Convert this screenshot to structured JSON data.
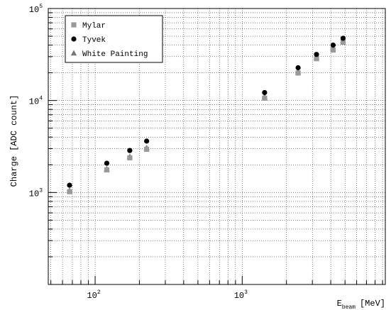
{
  "chart_data": {
    "type": "scatter",
    "xlabel": "E",
    "xlabel_sub": "beam",
    "xlabel_unit": "[MeV]",
    "ylabel": "Charge [ADC count]",
    "xscale": "log",
    "yscale": "log",
    "xlim": [
      48,
      9400
    ],
    "ylim": [
      100,
      100000
    ],
    "grid": true,
    "legend_position": "top-left",
    "x_ticks": [
      {
        "base": "10",
        "exp": "2",
        "value": 100
      },
      {
        "base": "10",
        "exp": "3",
        "value": 1000
      }
    ],
    "y_ticks": [
      {
        "base": "10",
        "exp": "3",
        "value": 1000
      },
      {
        "base": "10",
        "exp": "4",
        "value": 10000
      },
      {
        "base": "10",
        "exp": "5",
        "value": 100000
      }
    ],
    "series": [
      {
        "name": "Mylar",
        "marker": "square",
        "color": "#999999",
        "x": [
          67,
          120,
          172,
          224,
          1420,
          2400,
          3200,
          4150,
          4850
        ],
        "y": [
          1020,
          1760,
          2380,
          2950,
          10600,
          19900,
          28500,
          35300,
          43000
        ]
      },
      {
        "name": "Tyvek",
        "marker": "circle",
        "color": "#000000",
        "x": [
          67,
          120,
          172,
          224,
          1420,
          2400,
          3200,
          4150,
          4850
        ],
        "y": [
          1200,
          2080,
          2860,
          3620,
          12200,
          22700,
          31700,
          40000,
          47500
        ]
      },
      {
        "name": "White Painting",
        "marker": "triangle",
        "color": "#777777",
        "x": [
          67,
          120,
          172,
          224,
          1420,
          2400,
          3200,
          4150,
          4850
        ],
        "y": [
          1050,
          1800,
          2450,
          3050,
          11000,
          20500,
          29300,
          37000,
          44500
        ]
      }
    ]
  }
}
